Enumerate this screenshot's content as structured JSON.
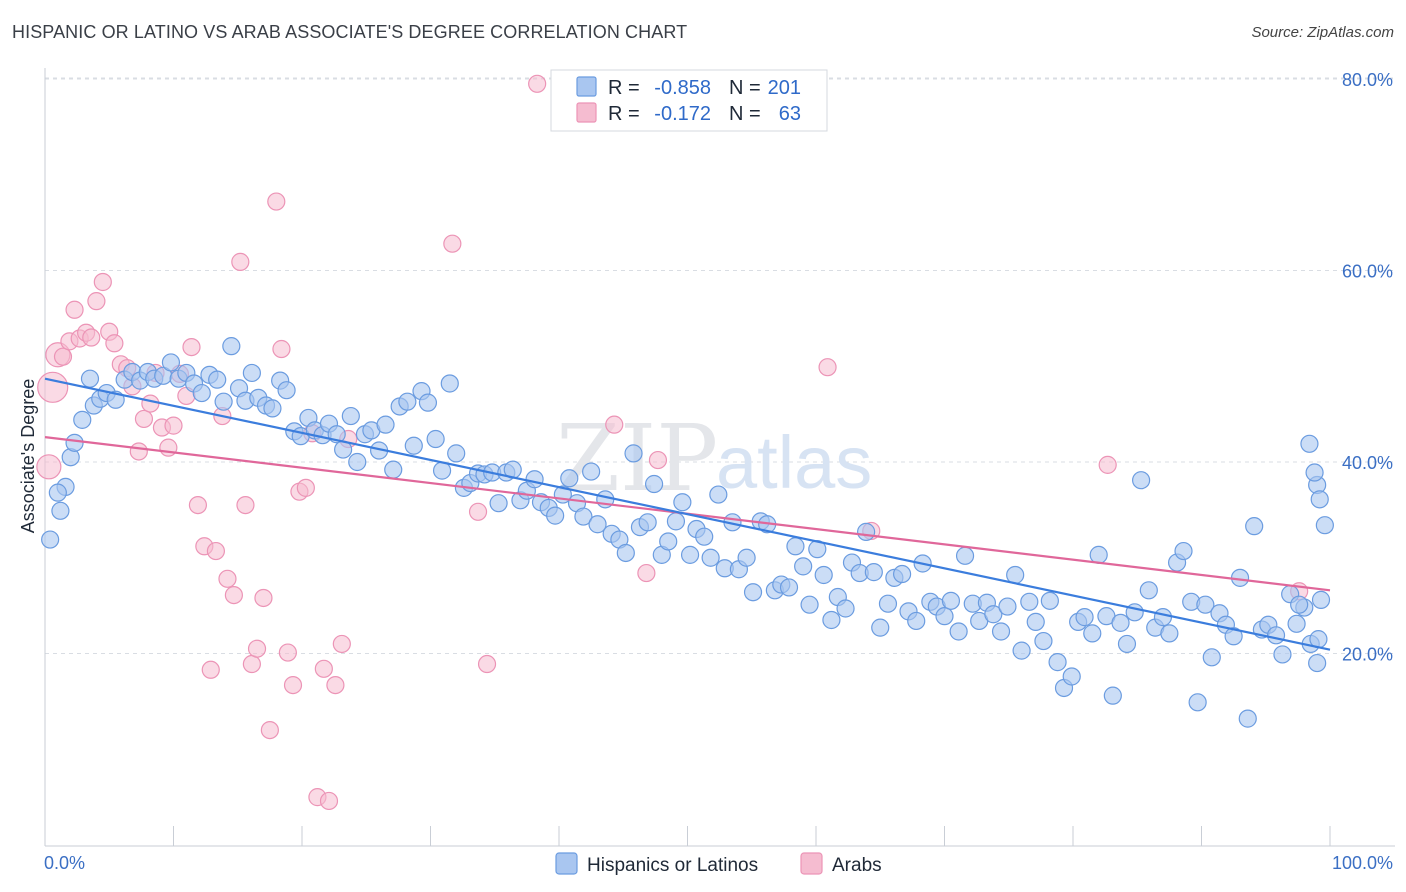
{
  "title": "HISPANIC OR LATINO VS ARAB ASSOCIATE'S DEGREE CORRELATION CHART",
  "source": "Source: ZipAtlas.com",
  "watermark": {
    "part1": "ZIP",
    "part2": "atlas"
  },
  "colors": {
    "blue": "#3b7ddd",
    "blue_fill": "#a9c6f0",
    "blue_stroke": "#6b9ce0",
    "pink": "#e0679a",
    "pink_fill": "#f5bcd0",
    "pink_stroke": "#ec94b6",
    "grid": "#d9dde3",
    "axis_text": "#3b6fc4"
  },
  "legend": {
    "rows": [
      {
        "r_label": "R =",
        "r_value": "-0.858",
        "n_label": "N =",
        "n_value": "201"
      },
      {
        "r_label": "R =",
        "r_value": "-0.172",
        "n_label": "N =",
        "n_value": "63"
      }
    ]
  },
  "bottom_legend": [
    "Hispanics or Latinos",
    "Arabs"
  ],
  "chart_data": {
    "type": "scatter",
    "ylabel": "Associate's Degree",
    "xlabel": "",
    "x_tick_labels": [
      "0.0%",
      "100.0%"
    ],
    "y_tick_labels": [
      "20.0%",
      "40.0%",
      "60.0%",
      "80.0%"
    ],
    "y_ticks": [
      20,
      40,
      60,
      80
    ],
    "xlim": [
      0,
      100
    ],
    "ylim": [
      0,
      82
    ],
    "grid": true,
    "legend_position": "top-center",
    "series": [
      {
        "name": "Hispanics or Latinos",
        "color": "#3b7ddd",
        "trend": {
          "x": [
            0,
            100
          ],
          "y": [
            48.7,
            20.4
          ]
        },
        "points": [
          [
            0.4,
            31.9
          ],
          [
            1.2,
            34.9
          ],
          [
            1.6,
            37.4
          ],
          [
            2.0,
            40.5
          ],
          [
            2.3,
            42.0
          ],
          [
            2.9,
            44.4
          ],
          [
            3.5,
            48.7
          ],
          [
            3.8,
            45.9
          ],
          [
            4.3,
            46.6
          ],
          [
            4.8,
            47.2
          ],
          [
            5.5,
            46.5
          ],
          [
            6.2,
            48.6
          ],
          [
            6.8,
            49.4
          ],
          [
            7.4,
            48.5
          ],
          [
            8.0,
            49.4
          ],
          [
            8.5,
            48.7
          ],
          [
            9.2,
            49.0
          ],
          [
            9.8,
            50.4
          ],
          [
            10.4,
            48.7
          ],
          [
            11.0,
            49.3
          ],
          [
            11.6,
            48.2
          ],
          [
            12.2,
            47.2
          ],
          [
            12.8,
            49.1
          ],
          [
            13.4,
            48.6
          ],
          [
            13.9,
            46.3
          ],
          [
            14.5,
            52.1
          ],
          [
            15.1,
            47.7
          ],
          [
            15.6,
            46.4
          ],
          [
            16.1,
            49.3
          ],
          [
            16.6,
            46.7
          ],
          [
            17.2,
            45.9
          ],
          [
            17.7,
            45.6
          ],
          [
            18.3,
            48.5
          ],
          [
            18.8,
            47.5
          ],
          [
            19.4,
            43.2
          ],
          [
            19.9,
            42.7
          ],
          [
            20.5,
            44.6
          ],
          [
            21.0,
            43.3
          ],
          [
            21.6,
            42.8
          ],
          [
            22.1,
            44.0
          ],
          [
            22.7,
            42.9
          ],
          [
            23.2,
            41.3
          ],
          [
            23.8,
            44.8
          ],
          [
            24.3,
            40.0
          ],
          [
            24.9,
            42.9
          ],
          [
            25.4,
            43.3
          ],
          [
            26.0,
            41.2
          ],
          [
            26.5,
            43.9
          ],
          [
            27.1,
            39.2
          ],
          [
            27.6,
            45.8
          ],
          [
            28.2,
            46.3
          ],
          [
            28.7,
            41.7
          ],
          [
            29.3,
            47.4
          ],
          [
            29.8,
            46.2
          ],
          [
            30.4,
            42.4
          ],
          [
            30.9,
            39.1
          ],
          [
            31.5,
            48.2
          ],
          [
            32.0,
            40.9
          ],
          [
            32.6,
            37.3
          ],
          [
            33.1,
            37.8
          ],
          [
            33.7,
            38.8
          ],
          [
            34.2,
            38.7
          ],
          [
            34.8,
            38.9
          ],
          [
            35.3,
            35.7
          ],
          [
            35.9,
            38.9
          ],
          [
            36.4,
            39.2
          ],
          [
            37.0,
            36.0
          ],
          [
            37.5,
            37.0
          ],
          [
            38.1,
            38.2
          ],
          [
            38.6,
            35.8
          ],
          [
            39.2,
            35.2
          ],
          [
            39.7,
            34.4
          ],
          [
            40.3,
            36.6
          ],
          [
            40.8,
            38.3
          ],
          [
            41.4,
            35.7
          ],
          [
            41.9,
            34.3
          ],
          [
            42.5,
            39.0
          ],
          [
            43.0,
            33.5
          ],
          [
            43.6,
            36.1
          ],
          [
            44.1,
            32.5
          ],
          [
            44.7,
            31.9
          ],
          [
            45.2,
            30.5
          ],
          [
            45.8,
            40.9
          ],
          [
            46.3,
            33.2
          ],
          [
            46.9,
            33.7
          ],
          [
            47.4,
            37.7
          ],
          [
            48.0,
            30.3
          ],
          [
            48.5,
            31.7
          ],
          [
            49.1,
            33.8
          ],
          [
            49.6,
            35.8
          ],
          [
            50.2,
            30.3
          ],
          [
            50.7,
            33.0
          ],
          [
            51.3,
            32.2
          ],
          [
            51.8,
            30.0
          ],
          [
            52.4,
            36.6
          ],
          [
            52.9,
            28.9
          ],
          [
            53.5,
            33.7
          ],
          [
            54.0,
            28.8
          ],
          [
            54.6,
            30.0
          ],
          [
            55.1,
            26.4
          ],
          [
            55.7,
            33.8
          ],
          [
            56.2,
            33.5
          ],
          [
            56.8,
            26.6
          ],
          [
            57.3,
            27.2
          ],
          [
            57.9,
            26.9
          ],
          [
            58.4,
            31.2
          ],
          [
            59.0,
            29.1
          ],
          [
            59.5,
            25.1
          ],
          [
            60.1,
            30.9
          ],
          [
            60.6,
            28.2
          ],
          [
            61.2,
            23.5
          ],
          [
            61.7,
            25.9
          ],
          [
            62.3,
            24.7
          ],
          [
            62.8,
            29.5
          ],
          [
            63.4,
            28.4
          ],
          [
            63.9,
            32.7
          ],
          [
            64.5,
            28.5
          ],
          [
            65.0,
            22.7
          ],
          [
            65.6,
            25.2
          ],
          [
            66.1,
            27.9
          ],
          [
            66.7,
            28.3
          ],
          [
            67.2,
            24.4
          ],
          [
            67.8,
            23.4
          ],
          [
            68.3,
            29.4
          ],
          [
            68.9,
            25.4
          ],
          [
            69.4,
            24.9
          ],
          [
            70.0,
            23.9
          ],
          [
            70.5,
            25.5
          ],
          [
            71.1,
            22.3
          ],
          [
            71.6,
            30.2
          ],
          [
            72.2,
            25.2
          ],
          [
            72.7,
            23.4
          ],
          [
            73.3,
            25.3
          ],
          [
            73.8,
            24.1
          ],
          [
            74.4,
            22.3
          ],
          [
            74.9,
            24.9
          ],
          [
            75.5,
            28.2
          ],
          [
            76.0,
            20.3
          ],
          [
            76.6,
            25.4
          ],
          [
            77.1,
            23.3
          ],
          [
            77.7,
            21.3
          ],
          [
            78.2,
            25.5
          ],
          [
            78.8,
            19.1
          ],
          [
            79.3,
            16.4
          ],
          [
            79.9,
            17.6
          ],
          [
            80.4,
            23.3
          ],
          [
            80.9,
            23.8
          ],
          [
            81.5,
            22.1
          ],
          [
            82.0,
            30.3
          ],
          [
            82.6,
            23.9
          ],
          [
            83.1,
            15.6
          ],
          [
            83.7,
            23.2
          ],
          [
            84.2,
            21.0
          ],
          [
            84.8,
            24.3
          ],
          [
            85.3,
            38.1
          ],
          [
            85.9,
            26.6
          ],
          [
            86.4,
            22.7
          ],
          [
            87.0,
            23.8
          ],
          [
            87.5,
            22.1
          ],
          [
            88.1,
            29.5
          ],
          [
            88.6,
            30.7
          ],
          [
            89.2,
            25.4
          ],
          [
            89.7,
            14.9
          ],
          [
            90.3,
            25.1
          ],
          [
            90.8,
            19.6
          ],
          [
            91.4,
            24.2
          ],
          [
            91.9,
            23.0
          ],
          [
            92.5,
            21.8
          ],
          [
            93.0,
            27.9
          ],
          [
            93.6,
            13.2
          ],
          [
            94.1,
            33.3
          ],
          [
            94.7,
            22.5
          ],
          [
            95.2,
            23.0
          ],
          [
            95.8,
            21.9
          ],
          [
            96.3,
            19.9
          ],
          [
            96.9,
            26.2
          ],
          [
            97.4,
            23.1
          ],
          [
            98.0,
            24.8
          ],
          [
            98.5,
            21.0
          ],
          [
            99.1,
            21.5
          ],
          [
            99.3,
            25.6
          ],
          [
            99.6,
            33.4
          ],
          [
            99.0,
            37.6
          ],
          [
            99.2,
            36.1
          ],
          [
            98.4,
            41.9
          ],
          [
            98.8,
            38.9
          ],
          [
            97.6,
            25.1
          ],
          [
            99.0,
            19.0
          ],
          [
            1.0,
            36.8
          ]
        ]
      },
      {
        "name": "Arabs",
        "color": "#e0679a",
        "trend": {
          "x": [
            0,
            100
          ],
          "y": [
            42.6,
            26.6
          ]
        },
        "points": [
          [
            0.3,
            39.5
          ],
          [
            0.6,
            47.8
          ],
          [
            1.0,
            51.2
          ],
          [
            1.4,
            51.0
          ],
          [
            1.9,
            52.6
          ],
          [
            2.3,
            55.9
          ],
          [
            2.7,
            52.9
          ],
          [
            3.2,
            53.5
          ],
          [
            3.6,
            53.0
          ],
          [
            4.0,
            56.8
          ],
          [
            4.5,
            58.8
          ],
          [
            5.0,
            53.6
          ],
          [
            5.4,
            52.4
          ],
          [
            5.9,
            50.2
          ],
          [
            6.4,
            49.8
          ],
          [
            6.8,
            47.9
          ],
          [
            7.3,
            41.1
          ],
          [
            7.7,
            44.5
          ],
          [
            8.2,
            46.1
          ],
          [
            8.6,
            49.3
          ],
          [
            9.1,
            43.6
          ],
          [
            9.6,
            41.5
          ],
          [
            10.0,
            43.8
          ],
          [
            10.5,
            49.2
          ],
          [
            11.0,
            46.9
          ],
          [
            11.4,
            52.0
          ],
          [
            11.9,
            35.5
          ],
          [
            12.4,
            31.2
          ],
          [
            12.9,
            18.3
          ],
          [
            13.3,
            30.7
          ],
          [
            13.8,
            44.8
          ],
          [
            14.2,
            27.8
          ],
          [
            14.7,
            26.1
          ],
          [
            15.2,
            60.9
          ],
          [
            15.6,
            35.5
          ],
          [
            16.1,
            18.9
          ],
          [
            16.5,
            20.5
          ],
          [
            17.0,
            25.8
          ],
          [
            17.5,
            12.0
          ],
          [
            18.0,
            67.2
          ],
          [
            18.4,
            51.8
          ],
          [
            18.9,
            20.1
          ],
          [
            19.3,
            16.7
          ],
          [
            19.8,
            36.9
          ],
          [
            20.3,
            37.3
          ],
          [
            20.8,
            43.0
          ],
          [
            21.2,
            5.0
          ],
          [
            21.7,
            18.4
          ],
          [
            22.1,
            4.6
          ],
          [
            22.6,
            16.7
          ],
          [
            23.1,
            21.0
          ],
          [
            23.6,
            42.4
          ],
          [
            31.7,
            62.8
          ],
          [
            33.7,
            34.8
          ],
          [
            34.4,
            18.9
          ],
          [
            38.3,
            79.5
          ],
          [
            44.3,
            43.9
          ],
          [
            46.8,
            28.4
          ],
          [
            47.7,
            40.2
          ],
          [
            60.9,
            49.9
          ],
          [
            64.3,
            32.8
          ],
          [
            82.7,
            39.7
          ],
          [
            97.6,
            26.5
          ]
        ]
      }
    ]
  }
}
